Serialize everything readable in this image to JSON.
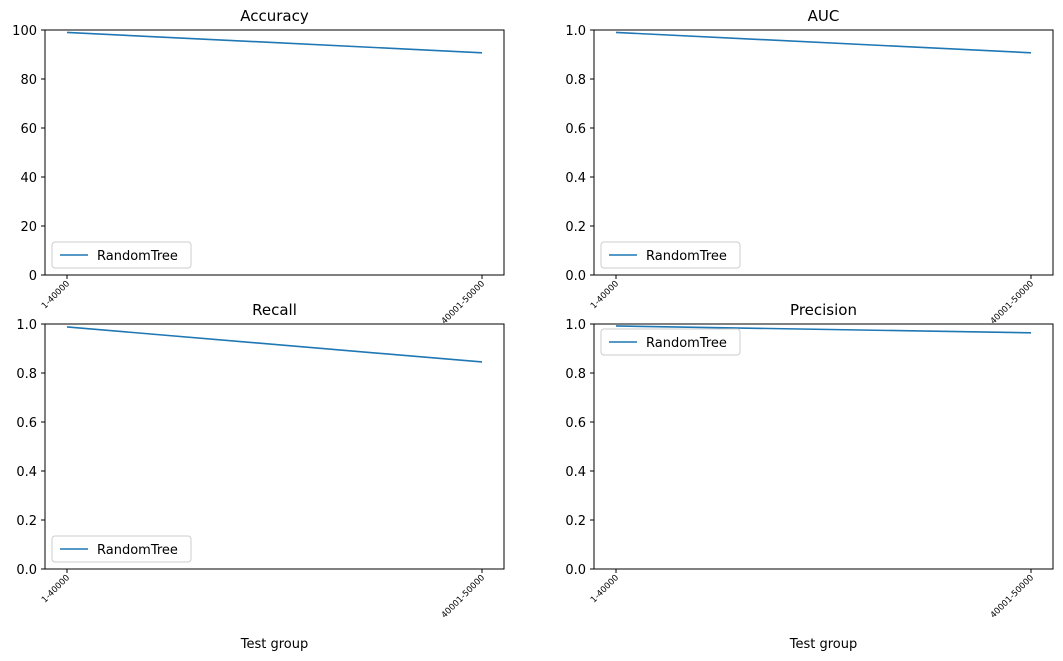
{
  "figure": {
    "line_color": "#1f77b4",
    "axis_color": "#000000",
    "background": "#ffffff"
  },
  "chart_data": [
    {
      "type": "line",
      "title": "Accuracy",
      "xlabel": "",
      "ylabel": "",
      "categories": [
        "1-40000",
        "40001-50000"
      ],
      "series": [
        {
          "name": "RandomTree",
          "values": [
            99.0,
            90.7
          ]
        }
      ],
      "ylim": [
        0,
        100
      ],
      "yticks": [
        "0",
        "20",
        "40",
        "60",
        "80",
        "100"
      ],
      "legend": "lower left",
      "grid": false
    },
    {
      "type": "line",
      "title": "AUC",
      "xlabel": "",
      "ylabel": "",
      "categories": [
        "1-40000",
        "40001-50000"
      ],
      "series": [
        {
          "name": "RandomTree",
          "values": [
            0.99,
            0.907
          ]
        }
      ],
      "ylim": [
        0,
        1.0
      ],
      "yticks": [
        "0.0",
        "0.2",
        "0.4",
        "0.6",
        "0.8",
        "1.0"
      ],
      "legend": "lower left",
      "grid": false
    },
    {
      "type": "line",
      "title": "Recall",
      "xlabel": "Test group",
      "ylabel": "",
      "categories": [
        "1-40000",
        "40001-50000"
      ],
      "series": [
        {
          "name": "RandomTree",
          "values": [
            0.988,
            0.845
          ]
        }
      ],
      "ylim": [
        0,
        1.0
      ],
      "yticks": [
        "0.0",
        "0.2",
        "0.4",
        "0.6",
        "0.8",
        "1.0"
      ],
      "legend": "lower left",
      "grid": false
    },
    {
      "type": "line",
      "title": "Precision",
      "xlabel": "Test group",
      "ylabel": "",
      "categories": [
        "1-40000",
        "40001-50000"
      ],
      "series": [
        {
          "name": "RandomTree",
          "values": [
            0.992,
            0.964
          ]
        }
      ],
      "ylim": [
        0,
        1.0
      ],
      "yticks": [
        "0.0",
        "0.2",
        "0.4",
        "0.6",
        "0.8",
        "1.0"
      ],
      "legend": "upper left",
      "grid": false
    }
  ]
}
